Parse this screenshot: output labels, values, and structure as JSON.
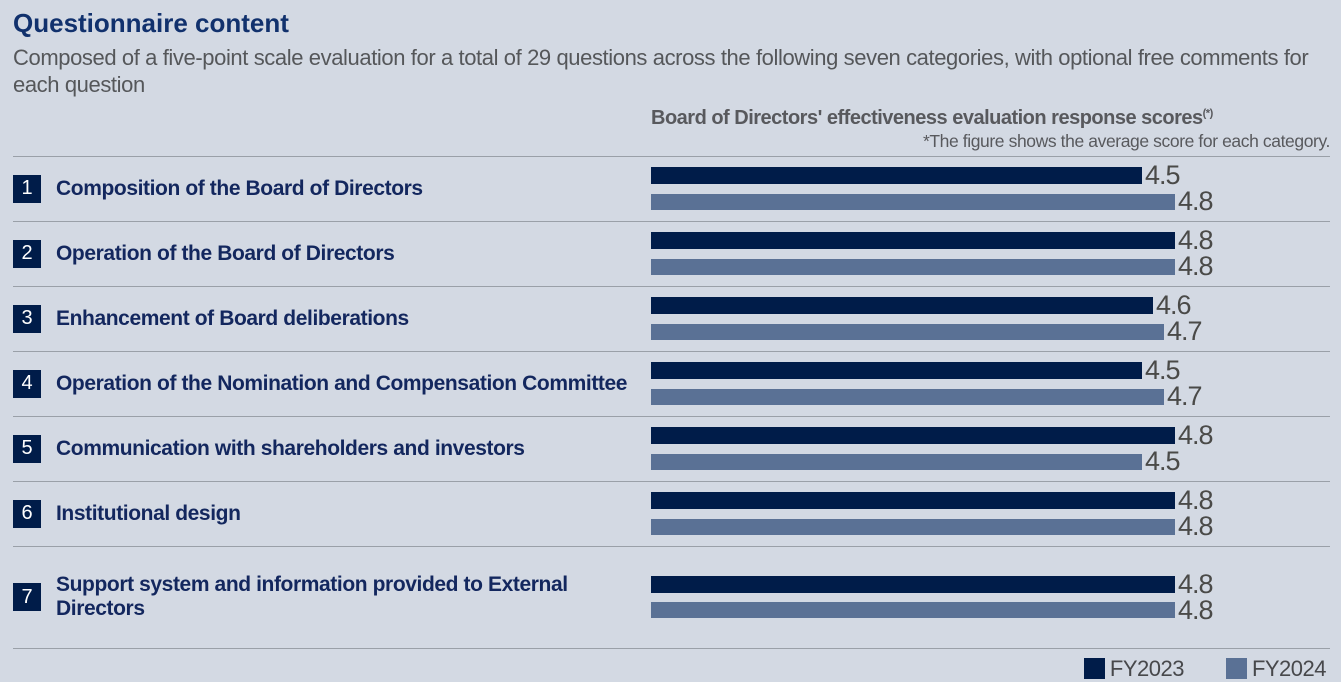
{
  "page": {
    "title": "Questionnaire content",
    "subtitle": "Composed of a five-point scale evaluation for a total of 29 questions across the following seven categories, with optional free comments for each question"
  },
  "chart": {
    "title": "Board of Directors' effectiveness evaluation response scores",
    "title_superscript": "(*)",
    "note": "*The figure shows the average score for each category.",
    "legend": [
      {
        "label": "FY2023",
        "color": "#001c49"
      },
      {
        "label": "FY2024",
        "color": "#5a7195"
      }
    ]
  },
  "chart_data": {
    "type": "bar",
    "orientation": "horizontal",
    "title": "Board of Directors' effectiveness evaluation response scores(*)",
    "note": "*The figure shows the average score for each category.",
    "value_axis_min": 0,
    "value_axis_max": 5,
    "grid": false,
    "legend_position": "bottom-right",
    "categories": [
      "Composition of the Board of Directors",
      "Operation of the Board of Directors",
      "Enhancement of Board deliberations",
      "Operation of the Nomination and Compensation Committee",
      "Communication with shareholders and investors",
      "Institutional design",
      "Support system and information provided to External Directors"
    ],
    "category_numbers": [
      "1",
      "2",
      "3",
      "4",
      "5",
      "6",
      "7"
    ],
    "series": [
      {
        "name": "FY2023",
        "color": "#001c49",
        "values": [
          4.5,
          4.8,
          4.6,
          4.5,
          4.8,
          4.8,
          4.8
        ]
      },
      {
        "name": "FY2024",
        "color": "#5a7195",
        "values": [
          4.8,
          4.8,
          4.7,
          4.7,
          4.5,
          4.8,
          4.8
        ]
      }
    ]
  },
  "colors": {
    "background": "#d3d9e3",
    "page_title": "#11316d",
    "subtitle_text": "#55575a",
    "chart_header_text": "#58595d",
    "category_text": "#13275e",
    "value_text": "#4a4a48",
    "divider": "#9aa0a8",
    "fy2023": "#001c49",
    "fy2024": "#5a7195"
  }
}
